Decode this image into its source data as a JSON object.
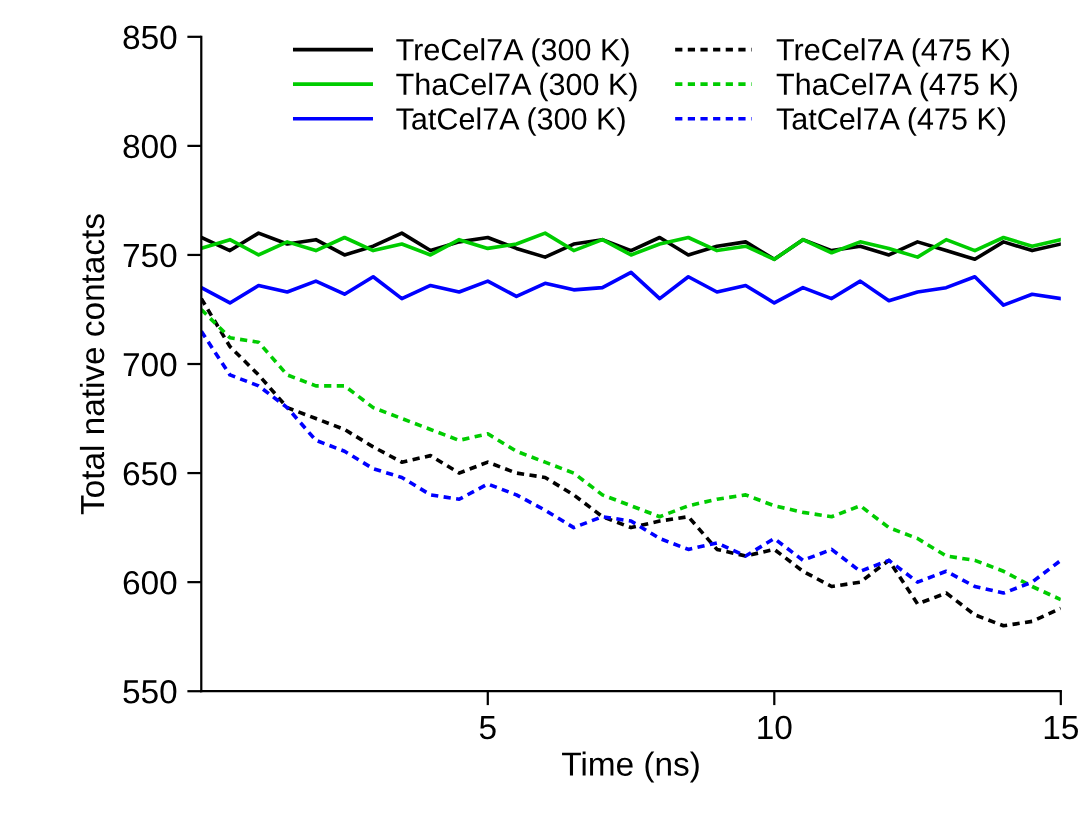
{
  "chart_data": {
    "type": "line",
    "xlabel": "Time (ns)",
    "ylabel": "Total native contacts",
    "x": [
      0,
      0.5,
      1,
      1.5,
      2,
      2.5,
      3,
      3.5,
      4,
      4.5,
      5,
      5.5,
      6,
      6.5,
      7,
      7.5,
      8,
      8.5,
      9,
      9.5,
      10,
      10.5,
      11,
      11.5,
      12,
      12.5,
      13,
      13.5,
      14,
      14.5,
      15
    ],
    "xlim": [
      0,
      15
    ],
    "ylim": [
      550,
      850
    ],
    "xticks": [
      5,
      10,
      15
    ],
    "yticks": [
      550,
      600,
      650,
      700,
      750,
      800,
      850
    ],
    "grid": false,
    "legend": "top",
    "marker": "none",
    "series": [
      {
        "name": "TreCel7A (300 K)",
        "color": "#000000",
        "line_style": "solid",
        "values": [
          758,
          752,
          760,
          755,
          757,
          750,
          754,
          760,
          752,
          756,
          758,
          753,
          749,
          755,
          757,
          752,
          758,
          750,
          754,
          756,
          748,
          757,
          752,
          754,
          750,
          756,
          752,
          748,
          756,
          752,
          755
        ]
      },
      {
        "name": "ThaCel7A (300 K)",
        "color": "#00cc00",
        "line_style": "solid",
        "values": [
          753,
          757,
          750,
          756,
          752,
          758,
          752,
          755,
          750,
          757,
          753,
          755,
          760,
          752,
          757,
          750,
          755,
          758,
          752,
          754,
          748,
          757,
          751,
          756,
          753,
          749,
          757,
          752,
          758,
          754,
          757
        ]
      },
      {
        "name": "TatCel7A (300 K)",
        "color": "#0000ff",
        "line_style": "solid",
        "values": [
          735,
          728,
          736,
          733,
          738,
          732,
          740,
          730,
          736,
          733,
          738,
          731,
          737,
          734,
          735,
          742,
          730,
          740,
          733,
          736,
          728,
          735,
          730,
          738,
          729,
          733,
          735,
          740,
          727,
          732,
          730
        ]
      },
      {
        "name": "TreCel7A (475 K)",
        "color": "#000000",
        "line_style": "dotted",
        "values": [
          730,
          708,
          695,
          680,
          675,
          670,
          662,
          655,
          658,
          650,
          655,
          650,
          648,
          640,
          630,
          625,
          628,
          630,
          615,
          612,
          615,
          605,
          598,
          600,
          610,
          590,
          595,
          585,
          580,
          582,
          588
        ]
      },
      {
        "name": "ThaCel7A (475 K)",
        "color": "#00cc00",
        "line_style": "dotted",
        "values": [
          725,
          712,
          710,
          695,
          690,
          690,
          680,
          675,
          670,
          665,
          668,
          660,
          655,
          650,
          640,
          635,
          630,
          635,
          638,
          640,
          635,
          632,
          630,
          635,
          625,
          620,
          612,
          610,
          605,
          598,
          592
        ]
      },
      {
        "name": "TatCel7A (475 K)",
        "color": "#0000ff",
        "line_style": "dotted",
        "values": [
          715,
          695,
          690,
          680,
          665,
          660,
          652,
          648,
          640,
          638,
          645,
          640,
          633,
          625,
          630,
          628,
          620,
          615,
          618,
          612,
          620,
          610,
          615,
          605,
          610,
          600,
          605,
          598,
          595,
          600,
          610
        ]
      }
    ]
  }
}
